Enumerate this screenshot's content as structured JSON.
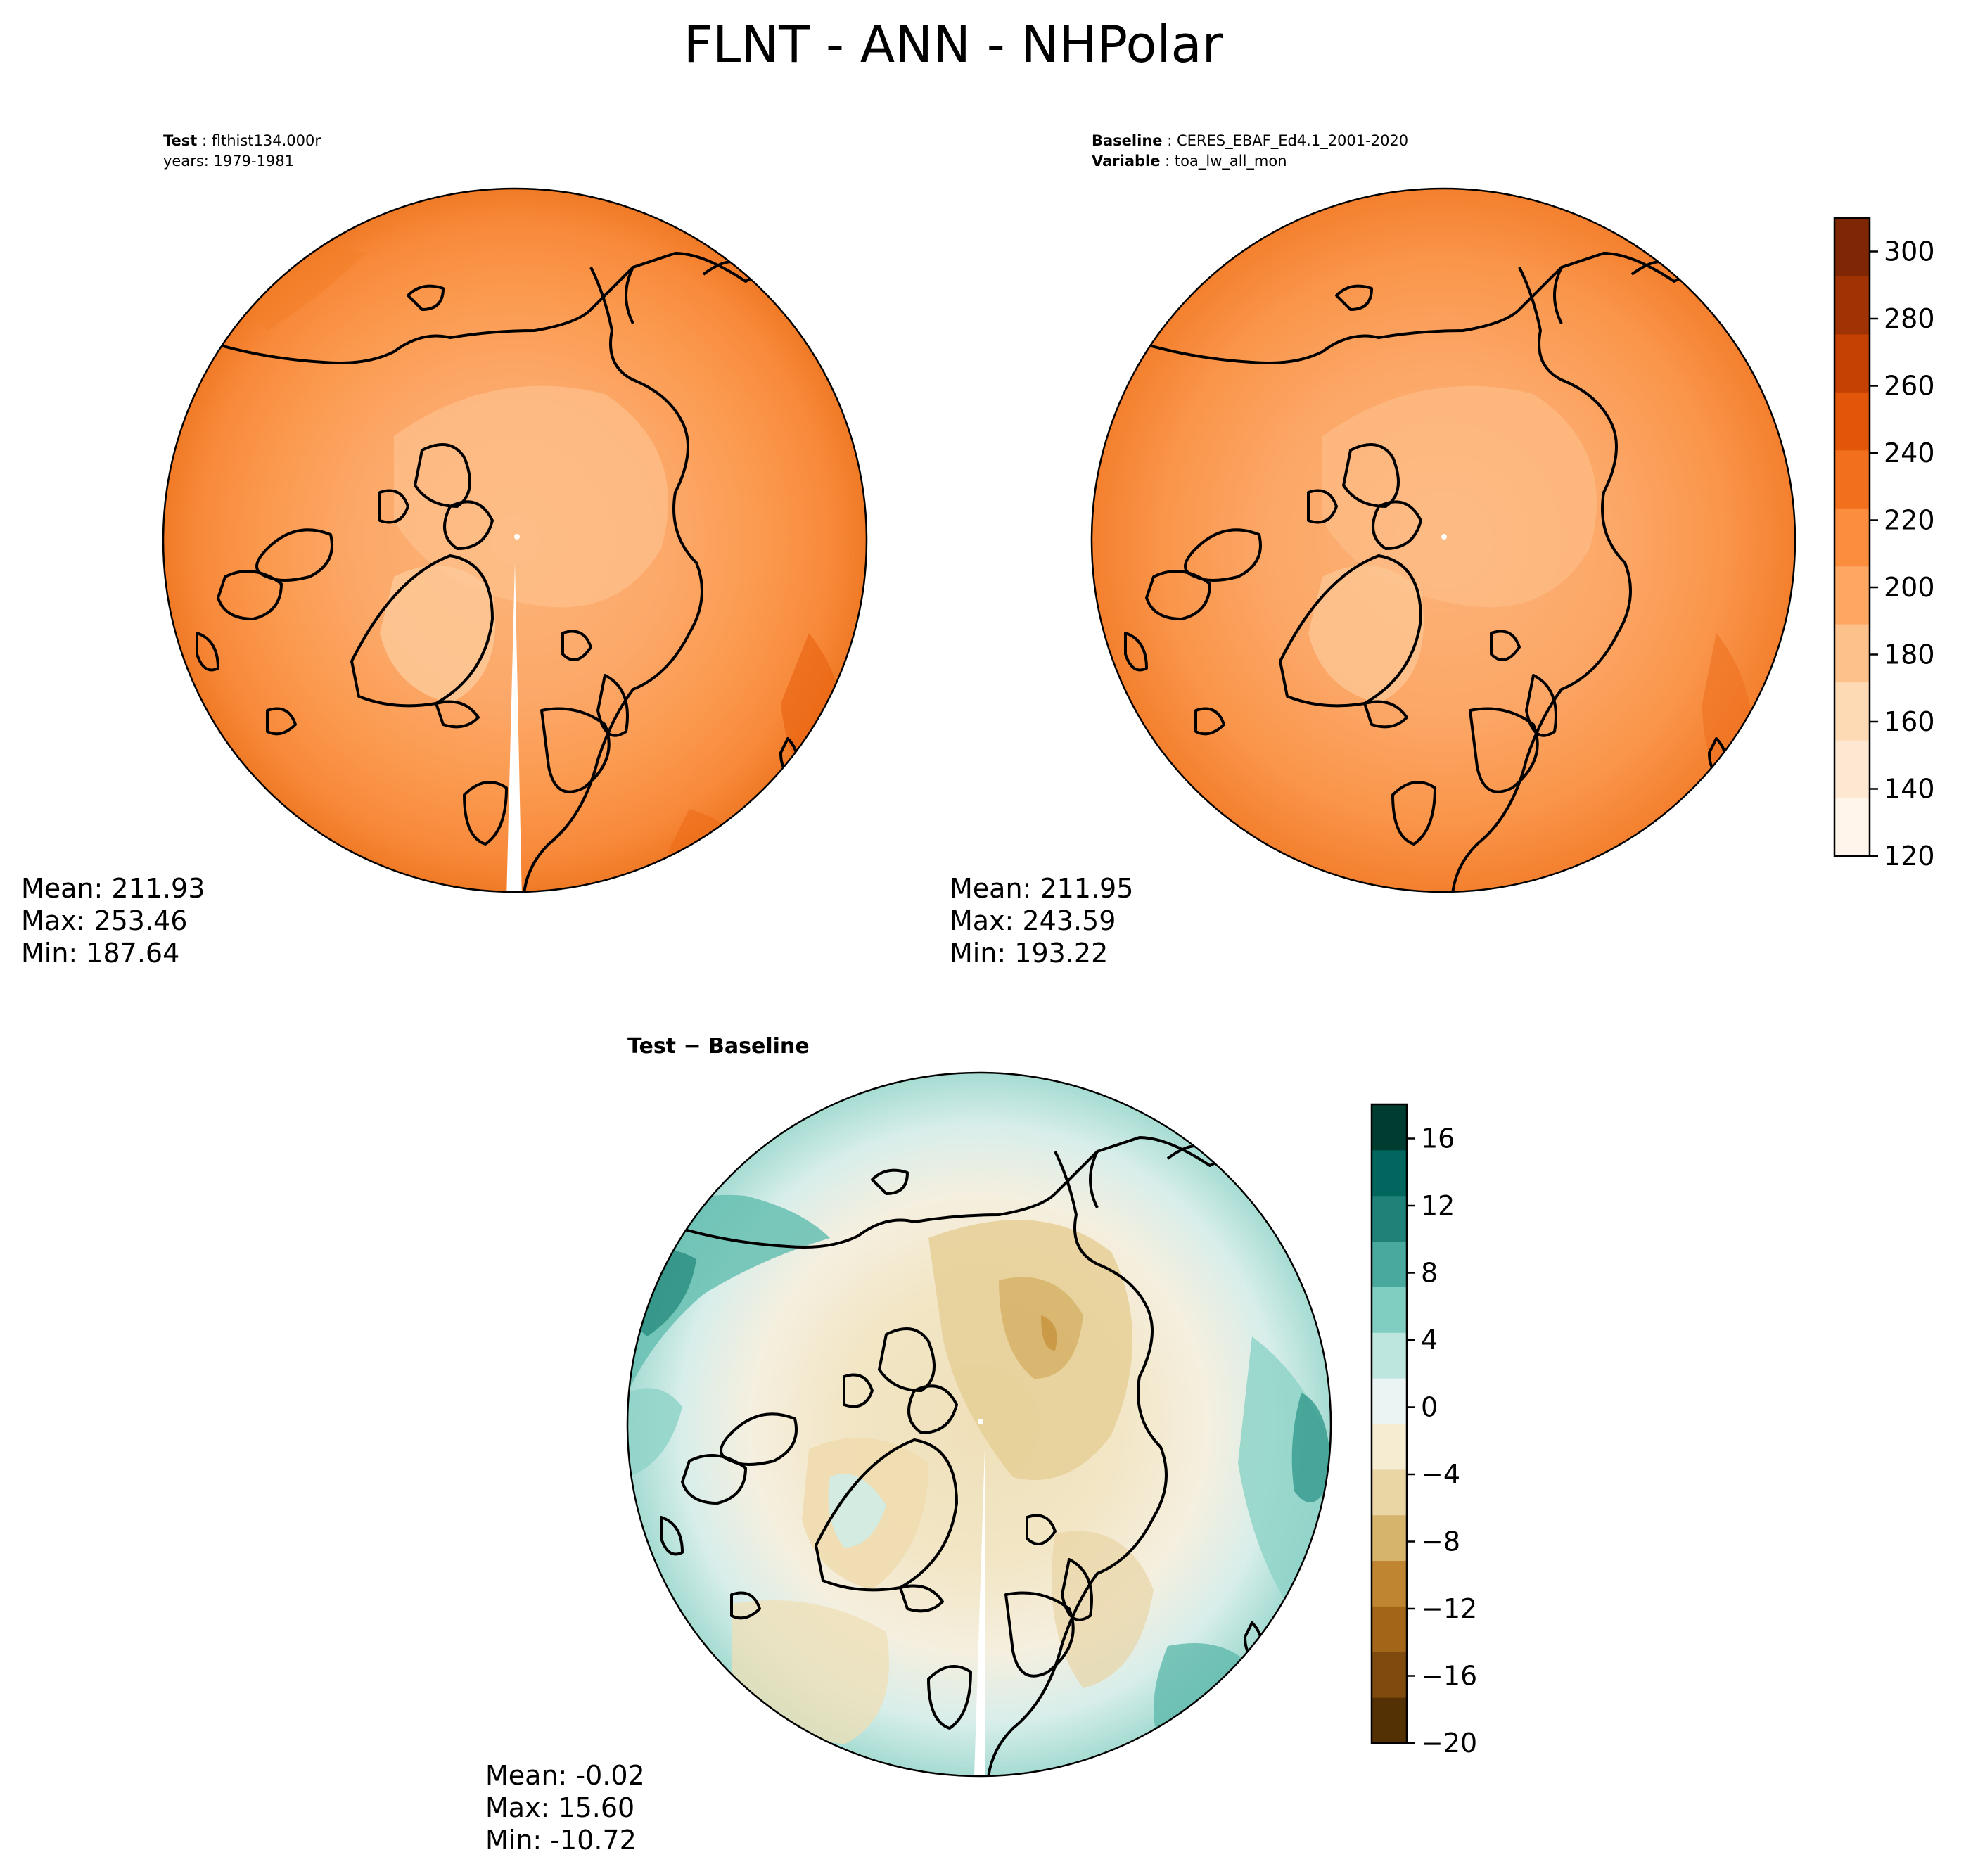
{
  "title": "FLNT - ANN - NHPolar",
  "panels": {
    "test": {
      "label_key": "Test",
      "label_value": "flthist134.000r",
      "line2": "years: 1979-1981",
      "mean": "Mean: 211.93",
      "max": "Max: 253.46",
      "min": "Min: 187.64"
    },
    "baseline": {
      "label_key": "Baseline",
      "label_value": "CERES_EBAF_Ed4.1_2001-2020",
      "var_key": "Variable",
      "var_value": "toa_lw_all_mon",
      "mean": "Mean: 211.95",
      "max": "Max: 243.59",
      "min": "Min: 193.22"
    },
    "diff": {
      "title": "Test − Baseline",
      "mean": "Mean: -0.02",
      "max": "Max: 15.60",
      "min": "Min: -10.72"
    }
  },
  "colorbars": {
    "main": {
      "ticks": [
        "120",
        "140",
        "160",
        "180",
        "200",
        "220",
        "240",
        "260",
        "280",
        "300"
      ],
      "colors": [
        "#fff5eb",
        "#fee8d2",
        "#fdd9b4",
        "#fdc28c",
        "#fda762",
        "#fb8d3d",
        "#f2701d",
        "#e25609",
        "#c44103",
        "#9f3303",
        "#7f2704"
      ]
    },
    "diff": {
      "ticks": [
        "−20",
        "−16",
        "−12",
        "−8",
        "−4",
        "0",
        "4",
        "8",
        "12",
        "16"
      ],
      "colors": [
        "#543005",
        "#7f4a0d",
        "#a36618",
        "#c08531",
        "#d7b46b",
        "#ead6a5",
        "#f6ecd2",
        "#eaf4f2",
        "#bde6df",
        "#80cdc1",
        "#4aa99f",
        "#1f8177",
        "#01665e",
        "#003c30"
      ]
    }
  }
}
